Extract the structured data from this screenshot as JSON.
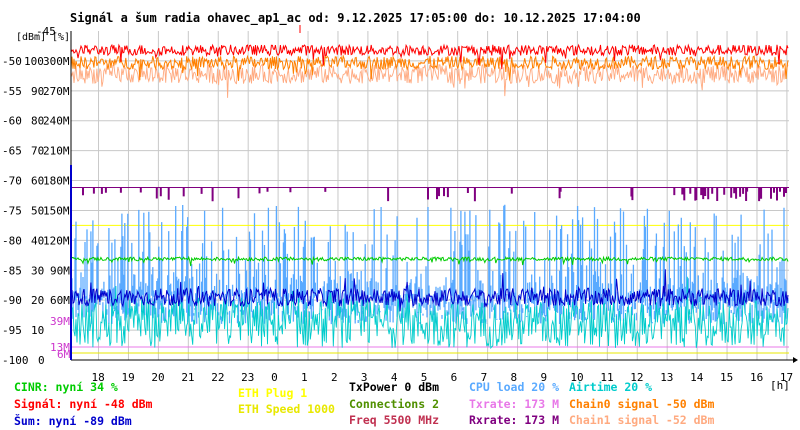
{
  "title": "Signál a šum radia ohavec_ap1_ac od: 9.12.2025 17:05:00 do: 10.12.2025 17:04:00",
  "colors": {
    "bg": "#ffffff",
    "grid": "#c8c8c8",
    "axis": "#000000",
    "signal": "#ff0000",
    "chain0": "#ff8000",
    "chain1": "#ffaa80",
    "noise": "#0000cc",
    "cinr": "#00cc00",
    "cpu": "#5aaaff",
    "airtime": "#00cccc",
    "txrate": "#e878e8",
    "rxrate": "#800080",
    "eth_plug": "#ffff00",
    "eth_speed": "#e8e800",
    "txpower": "#000000",
    "connections": "#509000",
    "freq": "#c03050",
    "tick39": "#cc33cc"
  },
  "chart_data": {
    "type": "line",
    "title": "Signál a šum radia ohavec_ap1_ac od: 9.12.2025 17:05:00 do: 10.12.2025 17:04:00",
    "x_unit_label": "[h]",
    "x_ticks": [
      "18",
      "19",
      "20",
      "21",
      "22",
      "23",
      "0",
      "1",
      "2",
      "3",
      "4",
      "5",
      "6",
      "7",
      "8",
      "9",
      "10",
      "11",
      "12",
      "13",
      "14",
      "15",
      "16",
      "17"
    ],
    "x_range_hours": [
      17.08,
      41.07
    ],
    "y_left_dbm": {
      "unit_label": "[dBm]",
      "ticks": [
        "-45",
        "-50",
        "-55",
        "-60",
        "-65",
        "-70",
        "-75",
        "-80",
        "-85",
        "-90",
        "-95",
        "-100"
      ],
      "range": [
        -100,
        -45
      ]
    },
    "y_mid_percent": {
      "unit_label": "[%]",
      "ticks": [
        "100",
        "90",
        "80",
        "70",
        "60",
        "50",
        "40",
        "30",
        "20",
        "10",
        "0"
      ],
      "range": [
        0,
        110
      ]
    },
    "y_right_rate": {
      "ticks": [
        "300M",
        "270M",
        "240M",
        "210M",
        "180M",
        "150M",
        "120M",
        "90M",
        "60M",
        "39M",
        "13M",
        "6M"
      ],
      "range_mbit": [
        0,
        330
      ]
    },
    "series": [
      {
        "name": "Signál",
        "unit": "dBm",
        "level_approx": -48,
        "range_approx": [
          -51,
          -45
        ]
      },
      {
        "name": "Chain0 signal",
        "unit": "dBm",
        "level_approx": -50,
        "range_approx": [
          -53,
          -48
        ]
      },
      {
        "name": "Chain1 signal",
        "unit": "dBm",
        "level_approx": -52,
        "range_approx": [
          -57,
          -49
        ]
      },
      {
        "name": "Šum",
        "unit": "dBm",
        "level_approx": -89,
        "range_approx": [
          -92,
          -85
        ]
      },
      {
        "name": "CINR",
        "unit": "%",
        "level_approx": 34,
        "range_approx": [
          31,
          35
        ]
      },
      {
        "name": "CPU load",
        "unit": "%",
        "level_approx": 20,
        "range_approx": [
          5,
          52
        ]
      },
      {
        "name": "Airtime",
        "unit": "%",
        "level_approx": 20,
        "range_approx": [
          2,
          25
        ]
      },
      {
        "name": "Txrate",
        "unit": "Mbit",
        "level_approx": 173
      },
      {
        "name": "Rxrate",
        "unit": "Mbit",
        "level_approx": 173
      },
      {
        "name": "ETH Plug",
        "level_approx": 1
      },
      {
        "name": "ETH Speed",
        "unit": "Mbit",
        "level_approx": 1000
      }
    ]
  },
  "legend": {
    "cinr": "CINR: nyní 34 %",
    "signal": "Signál: nyní -48 dBm",
    "noise": "Šum: nyní -89 dBm",
    "eth_plug": "ETH Plug 1",
    "eth_speed": "ETH Speed 1000",
    "txpower": "TxPower 0 dBm",
    "connections": "Connections 2",
    "freq": "Freq 5500 MHz",
    "cpu": "CPU load 20 %",
    "txrate": "Txrate: 173 M",
    "rxrate": "Rxrate: 173 M",
    "airtime": "Airtime 20 %",
    "chain0": "Chain0 signal -50 dBm",
    "chain1": "Chain1 signal -52 dBm"
  }
}
